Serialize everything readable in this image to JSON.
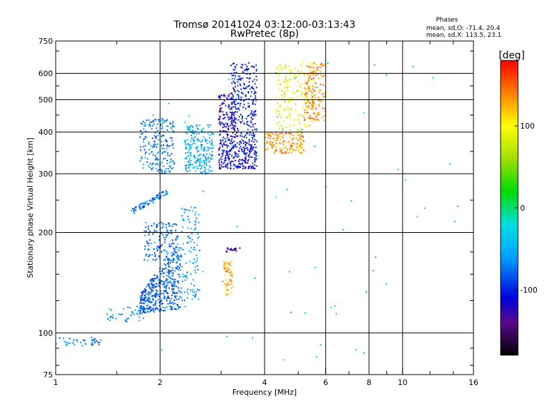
{
  "chart_data": {
    "type": "scatter",
    "title": "Tromsø 20141024 03:12:00-03:13:43",
    "subtitle": "RwPretec (8p)",
    "xlabel": "Frequency [MHz]",
    "ylabel": "Stationary phase Virtual Height [km]",
    "xscale": "log",
    "yscale": "log",
    "xlim": [
      1,
      16
    ],
    "ylim": [
      75,
      750
    ],
    "xticks": [
      1,
      2,
      4,
      6,
      8,
      10,
      16
    ],
    "yticks": [
      75,
      100,
      200,
      300,
      400,
      500,
      600,
      750
    ],
    "grid_x": [
      2,
      4,
      6,
      8,
      10
    ],
    "grid_y": [
      100,
      200,
      300,
      400,
      500,
      600
    ],
    "phases_title": "Phases",
    "phases_lines": [
      "mean, sd,O: -71.4, 20.4",
      "mean, sd,X: 113.5, 23.1"
    ],
    "colorbar": {
      "label": "[deg]",
      "range": [
        -180,
        180
      ],
      "ticks": [
        100,
        0,
        -100
      ],
      "stops": [
        {
          "v": -180,
          "color": "#000000"
        },
        {
          "v": -140,
          "color": "#5a0a8c"
        },
        {
          "v": -110,
          "color": "#0000dc"
        },
        {
          "v": -60,
          "color": "#00a0ff"
        },
        {
          "v": -20,
          "color": "#00e0e0"
        },
        {
          "v": 20,
          "color": "#00dc00"
        },
        {
          "v": 60,
          "color": "#a0e000"
        },
        {
          "v": 100,
          "color": "#ffff00"
        },
        {
          "v": 140,
          "color": "#ff8000"
        },
        {
          "v": 180,
          "color": "#ff0000"
        }
      ]
    },
    "clusters": [
      {
        "name": "low-trace",
        "f": [
          1.0,
          1.35
        ],
        "h": [
          91,
          97
        ],
        "phase": -70,
        "n": 40,
        "shape": "band"
      },
      {
        "name": "E-trace-lower",
        "f": [
          1.75,
          2.3
        ],
        "h": [
          112,
          180
        ],
        "phase": -80,
        "n": 420,
        "shape": "curve"
      },
      {
        "name": "E-trace-upper",
        "f": [
          1.8,
          2.25
        ],
        "h": [
          165,
          215
        ],
        "phase": -75,
        "n": 150,
        "shape": "box"
      },
      {
        "name": "E-trace-tail",
        "f": [
          1.4,
          1.8
        ],
        "h": [
          108,
          120
        ],
        "phase": -60,
        "n": 40,
        "shape": "band"
      },
      {
        "name": "E2-trace",
        "f": [
          2.3,
          2.6
        ],
        "h": [
          125,
          240
        ],
        "phase": -55,
        "n": 110,
        "shape": "box"
      },
      {
        "name": "F1-slant",
        "f": [
          1.65,
          2.1
        ],
        "h": [
          230,
          265
        ],
        "phase": -75,
        "n": 80,
        "shape": "slant"
      },
      {
        "name": "F1-lower",
        "f": [
          1.75,
          2.2
        ],
        "h": [
          300,
          440
        ],
        "phase": -70,
        "n": 200,
        "shape": "box"
      },
      {
        "name": "F1-mid",
        "f": [
          2.35,
          2.85
        ],
        "h": [
          300,
          420
        ],
        "phase": -50,
        "n": 230,
        "shape": "box"
      },
      {
        "name": "F2-O-lower",
        "f": [
          2.95,
          3.8
        ],
        "h": [
          310,
          380
        ],
        "phase": -110,
        "n": 260,
        "shape": "box"
      },
      {
        "name": "F2-O-upper",
        "f": [
          3.2,
          3.8
        ],
        "h": [
          380,
          650
        ],
        "phase": -105,
        "n": 260,
        "shape": "box"
      },
      {
        "name": "F2-O-mid",
        "f": [
          2.95,
          3.3
        ],
        "h": [
          380,
          520
        ],
        "phase": -120,
        "n": 120,
        "shape": "box"
      },
      {
        "name": "F2-X-lower",
        "f": [
          4.0,
          5.2
        ],
        "h": [
          345,
          400
        ],
        "phase": 130,
        "n": 160,
        "shape": "box"
      },
      {
        "name": "F2-X-mid",
        "f": [
          4.3,
          5.6
        ],
        "h": [
          400,
          650
        ],
        "phase": 90,
        "n": 180,
        "shape": "box"
      },
      {
        "name": "F2-X-upper",
        "f": [
          5.2,
          6.0
        ],
        "h": [
          430,
          650
        ],
        "phase": 140,
        "n": 150,
        "shape": "box"
      },
      {
        "name": "X-small-patch",
        "f": [
          3.05,
          3.25
        ],
        "h": [
          130,
          165
        ],
        "phase": 125,
        "n": 60,
        "shape": "box"
      },
      {
        "name": "O-small-patch",
        "f": [
          3.05,
          3.4
        ],
        "h": [
          175,
          180
        ],
        "phase": -130,
        "n": 20,
        "shape": "band"
      },
      {
        "name": "isolated-points",
        "f": [
          1.9,
          15.0
        ],
        "h": [
          80,
          650
        ],
        "phase": -40,
        "n": 60,
        "shape": "sparse"
      }
    ]
  }
}
